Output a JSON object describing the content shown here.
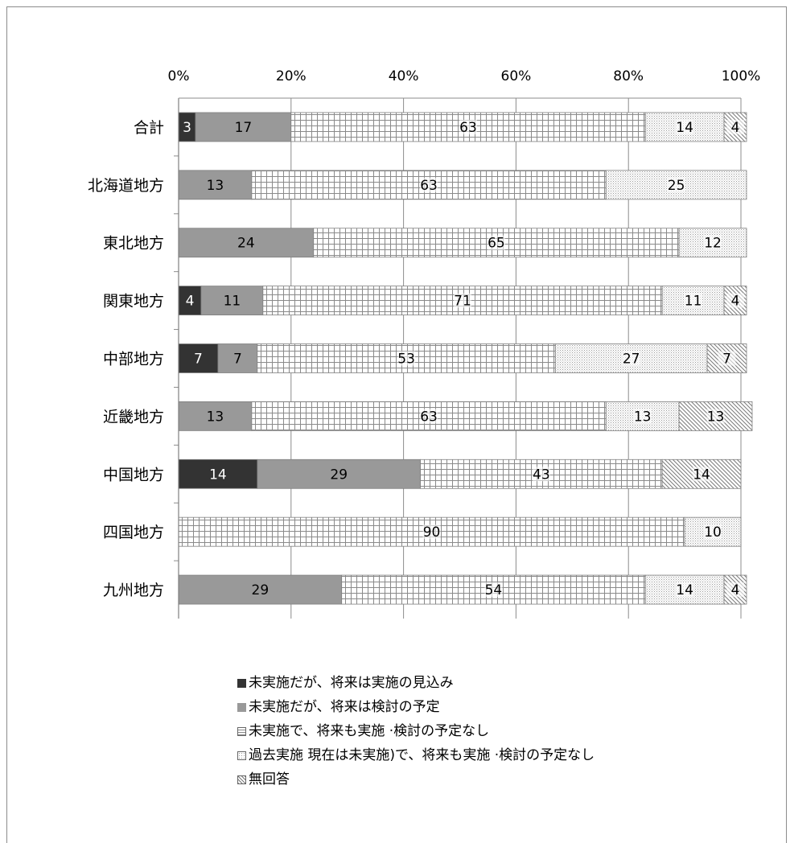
{
  "chart_data": {
    "type": "bar",
    "orientation": "horizontal",
    "stacked": "percent",
    "x_axis_position": "top",
    "xlim": [
      0,
      100
    ],
    "x_ticks": [
      "0%",
      "20%",
      "40%",
      "60%",
      "80%",
      "100%"
    ],
    "grid": true,
    "legend_position": "bottom",
    "categories": [
      "合計",
      "北海道地方",
      "東北地方",
      "関東地方",
      "中部地方",
      "近畿地方",
      "中国地方",
      "四国地方",
      "九州地方"
    ],
    "series": [
      {
        "name": "未実施だが、将来は実施の見込み",
        "values": [
          3,
          0,
          0,
          4,
          7,
          0,
          14,
          0,
          0
        ],
        "color": "#333333",
        "pattern": "solid"
      },
      {
        "name": "未実施だが、将来は検討の予定",
        "values": [
          17,
          13,
          24,
          11,
          7,
          13,
          29,
          0,
          29
        ],
        "color": "#999999",
        "pattern": "solid"
      },
      {
        "name": "未実施で、将来も実施 ·検討の予定なし",
        "values": [
          63,
          63,
          65,
          71,
          53,
          63,
          43,
          90,
          54
        ],
        "color": "#888888",
        "pattern": "grid"
      },
      {
        "name": "過去実施  現在は未実施)で、将来も実施 ·検討の予定なし",
        "values": [
          14,
          25,
          12,
          11,
          27,
          13,
          0,
          10,
          14
        ],
        "color": "#999999",
        "pattern": "dots"
      },
      {
        "name": "無回答",
        "values": [
          4,
          0,
          0,
          4,
          7,
          13,
          14,
          0,
          4
        ],
        "color": "#777777",
        "pattern": "diagonal"
      }
    ],
    "show_data_labels": true
  }
}
